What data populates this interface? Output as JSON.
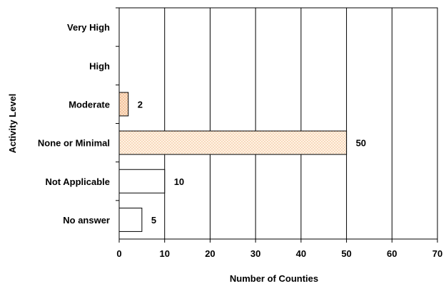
{
  "chart_data": {
    "type": "bar",
    "orientation": "horizontal",
    "categories": [
      "Very High",
      "High",
      "Moderate",
      "None or Minimal",
      "Not Applicable",
      "No answer"
    ],
    "values": [
      null,
      null,
      2,
      50,
      10,
      5
    ],
    "data_labels": [
      "",
      "",
      "2",
      "50",
      "10",
      "5"
    ],
    "xlabel": "Number of Counties",
    "ylabel": "Activity Level",
    "xlim": [
      0,
      70
    ],
    "xticks": [
      0,
      10,
      20,
      30,
      40,
      50,
      60,
      70
    ],
    "grid": "vertical",
    "bar_fills": [
      "none",
      "none",
      "dotted-orange",
      "dotted-orange",
      "white",
      "white"
    ],
    "colors": {
      "pattern_bg": "#fff4e4",
      "pattern_dot": "#f0b890",
      "moderate_bg": "#fde2c8",
      "moderate_dot": "#e8a070",
      "border": "#000000"
    }
  }
}
